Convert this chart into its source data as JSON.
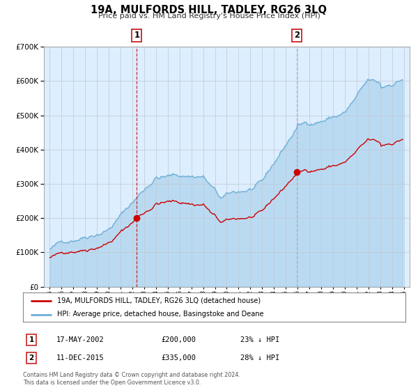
{
  "title": "19A, MULFORDS HILL, TADLEY, RG26 3LQ",
  "subtitle": "Price paid vs. HM Land Registry's House Price Index (HPI)",
  "legend_line1": "19A, MULFORDS HILL, TADLEY, RG26 3LQ (detached house)",
  "legend_line2": "HPI: Average price, detached house, Basingstoke and Deane",
  "transaction1_date": "17-MAY-2002",
  "transaction1_price": "£200,000",
  "transaction1_hpi": "23% ↓ HPI",
  "transaction2_date": "11-DEC-2015",
  "transaction2_price": "£335,000",
  "transaction2_hpi": "28% ↓ HPI",
  "footer1": "Contains HM Land Registry data © Crown copyright and database right 2024.",
  "footer2": "This data is licensed under the Open Government Licence v3.0.",
  "hpi_color": "#6baed6",
  "price_color": "#cc0000",
  "bg_color": "#ddeeff",
  "ylim": [
    0,
    700000
  ],
  "yticks": [
    0,
    100000,
    200000,
    300000,
    400000,
    500000,
    600000,
    700000
  ],
  "transaction1_x": 2002.37,
  "transaction1_y": 200000,
  "transaction2_x": 2015.94,
  "transaction2_y": 335000,
  "vline1_x": 2002.37,
  "vline2_x": 2015.94,
  "xlim_left": 1994.5,
  "xlim_right": 2025.5
}
